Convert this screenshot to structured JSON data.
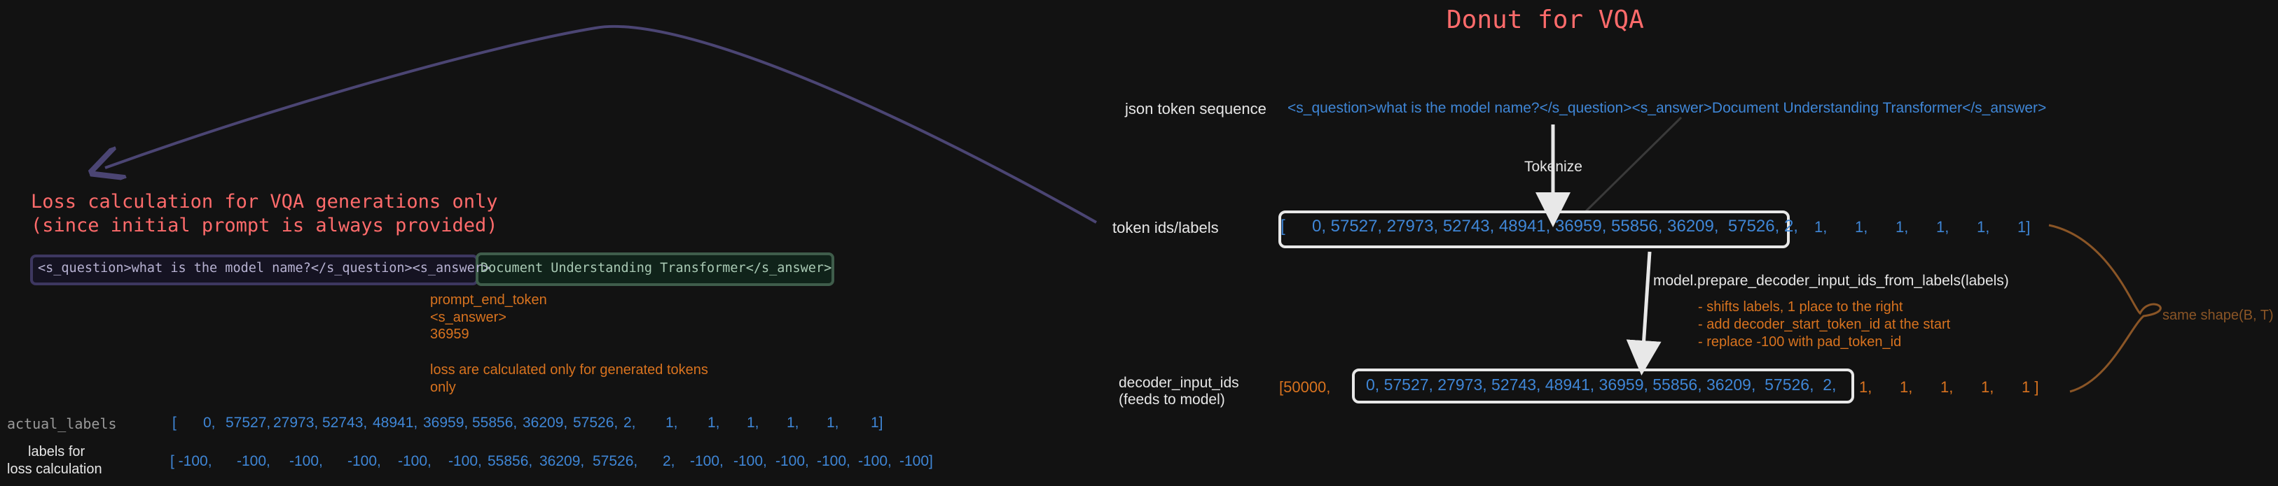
{
  "title": "Donut for VQA",
  "json_seq": {
    "label": "json token sequence",
    "text": "<s_question>what is the model name?</s_question><s_answer>Document Understanding Transformer</s_answer>"
  },
  "tokenize_label": "Tokenize",
  "token_ids": {
    "label": "token ids/labels",
    "open": "[",
    "boxed": "0, 57527, 27973, 52743, 48941, 36959, 55856, 36209,  57526, 2,",
    "tail": [
      "1,",
      "1,",
      "1,",
      "1,",
      "1,",
      "1]"
    ]
  },
  "prepare": {
    "call": "model.prepare_decoder_input_ids_from_labels(labels)",
    "notes": [
      "- shifts labels, 1 place to the right",
      "- add decoder_start_token_id at the start",
      "- replace -100 with pad_token_id"
    ]
  },
  "same_shape": "same shape(B, T)",
  "decoder": {
    "label_line1": "decoder_input_ids",
    "label_line2": "(feeds to model)",
    "start": "[50000,",
    "boxed": "0, 57527, 27973, 52743, 48941, 36959, 55856, 36209,  57526,  2,",
    "tail": [
      "1,",
      "1,",
      "1,",
      "1,",
      "1 ]"
    ]
  },
  "loss_title": {
    "line1": "Loss calculation for VQA generations only",
    "line2": "(since initial prompt is always provided)"
  },
  "prompt_box": "<s_question>what is the model name?</s_question><s_answer>",
  "answer_box": "Document Understanding Transformer</s_answer>",
  "prompt_end": [
    "prompt_end_token",
    "<s_answer>",
    "36959"
  ],
  "loss_note": [
    "loss are calculated only for generated tokens",
    "only"
  ],
  "actual_labels": {
    "label": "actual_labels",
    "values": [
      "[",
      "0,",
      "57527,",
      "27973,",
      "52743,",
      "48941,",
      "36959,",
      "55856,",
      "36209,",
      "57526,",
      "2,",
      "1,",
      "1,",
      "1,",
      "1,",
      "1,",
      "1]"
    ]
  },
  "loss_labels": {
    "label_line1": "labels for",
    "label_line2": "loss calculation",
    "values": [
      "[ -100,",
      "-100,",
      "-100,",
      "-100,",
      "-100,",
      "-100,",
      "55856,",
      "36209,",
      "57526,",
      "2,",
      "-100,",
      "-100,",
      "-100,",
      "-100,",
      "-100,",
      "-100]"
    ]
  },
  "colors": {
    "background": "#121212",
    "title": "#ff6b6b",
    "token_blue": "#3f86d6",
    "note_orange": "#d9731f",
    "arrow_purple": "#4b4573",
    "box_white": "#e8e8e8"
  }
}
